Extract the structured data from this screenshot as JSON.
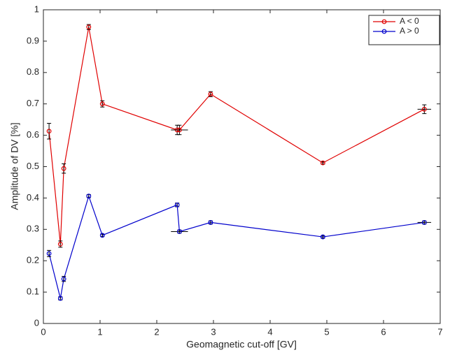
{
  "chart_data": {
    "type": "line",
    "xlabel": "Geomagnetic cut-off [GV]",
    "ylabel": "Amplitude of DV [%]",
    "x": [
      0.1,
      0.3,
      0.36,
      0.8,
      1.04,
      2.36,
      2.4,
      2.95,
      4.93,
      6.72
    ],
    "series": [
      {
        "name": "A < 0",
        "color": "#e00000",
        "values": [
          0.613,
          0.253,
          0.494,
          0.945,
          0.7,
          0.617,
          0.617,
          0.731,
          0.512,
          0.683
        ],
        "errors": [
          0.025,
          0.01,
          0.015,
          0.008,
          0.01,
          0.015,
          0.015,
          0.008,
          0.004,
          0.014
        ],
        "xerrors": [
          0,
          0,
          0,
          0,
          0,
          0,
          0.15,
          0,
          0,
          0.12
        ]
      },
      {
        "name": "A > 0",
        "color": "#0000cc",
        "values": [
          0.223,
          0.08,
          0.142,
          0.406,
          0.281,
          0.378,
          0.293,
          0.322,
          0.276,
          0.322
        ],
        "errors": [
          0.01,
          0.005,
          0.008,
          0.005,
          0.004,
          0.006,
          0.005,
          0.005,
          0.004,
          0.005
        ],
        "xerrors": [
          0,
          0,
          0,
          0,
          0,
          0,
          0.15,
          0,
          0,
          0.12
        ]
      }
    ],
    "xlim": [
      0,
      7
    ],
    "xticks": [
      0,
      1,
      2,
      3,
      4,
      5,
      6,
      7
    ],
    "ylim": [
      0,
      1
    ],
    "yticks": [
      0,
      0.1,
      0.2,
      0.3,
      0.4,
      0.5,
      0.6,
      0.7,
      0.8,
      0.9,
      1
    ],
    "grid": false,
    "legend": "northeast"
  }
}
